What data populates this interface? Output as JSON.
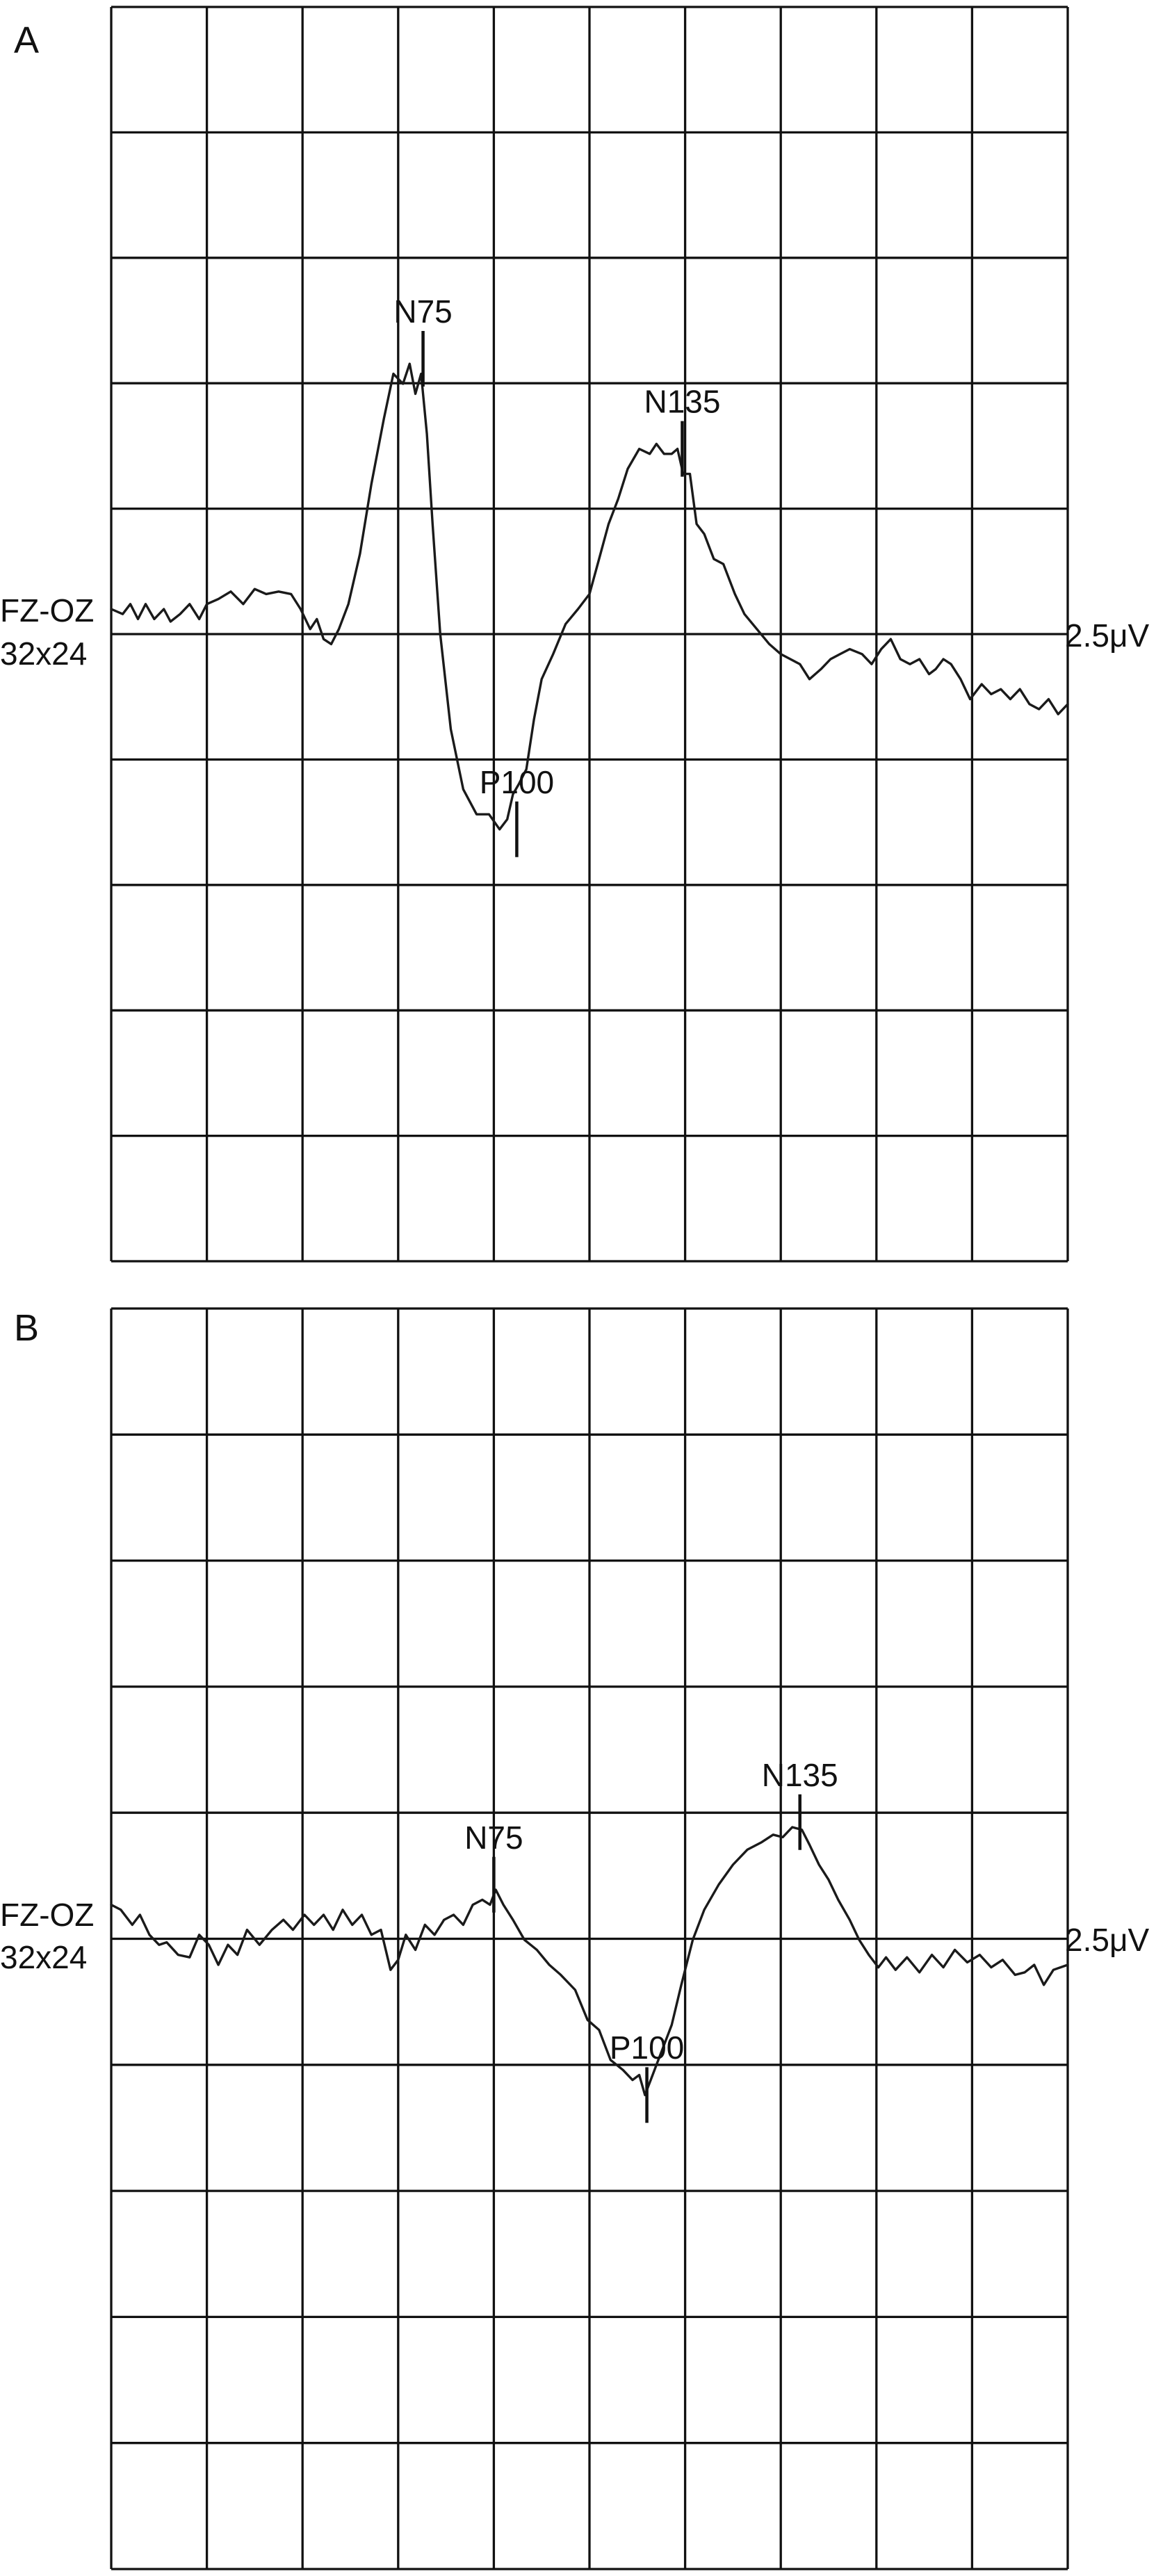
{
  "chart_data": [
    {
      "type": "line",
      "panel_label": "A",
      "channel_label": "FZ-OZ",
      "channel_sublabel": "32x24",
      "scale_label": "2.5μV",
      "grid": true,
      "grid_divisions": {
        "x": 10,
        "y": 10
      },
      "peaks": [
        {
          "name": "N75",
          "x": 3.26,
          "y": 5.5,
          "dir": -1
        },
        {
          "name": "P100",
          "x": 4.24,
          "y": -3.9,
          "dir": 1
        },
        {
          "name": "N135",
          "x": 5.97,
          "y": 3.7,
          "dir": -1
        }
      ],
      "series": [
        {
          "x": [
            0.0,
            0.12,
            0.2,
            0.28,
            0.36,
            0.45,
            0.55,
            0.62,
            0.72,
            0.82,
            0.92,
            1.0,
            1.12,
            1.25,
            1.38,
            1.5,
            1.62,
            1.75,
            1.88,
            1.98,
            2.08,
            2.15,
            2.22,
            2.3,
            2.38,
            2.48,
            2.6,
            2.72,
            2.85,
            2.95,
            3.05,
            3.12,
            3.18,
            3.24,
            3.3,
            3.36,
            3.44,
            3.55,
            3.68,
            3.82,
            3.95,
            4.06,
            4.14,
            4.2,
            4.26,
            4.34,
            4.42,
            4.5,
            4.62,
            4.75,
            4.88,
            5.0,
            5.1,
            5.2,
            5.3,
            5.4,
            5.52,
            5.63,
            5.7,
            5.78,
            5.86,
            5.92,
            5.98,
            6.05,
            6.12,
            6.2,
            6.3,
            6.4,
            6.52,
            6.62,
            6.75,
            6.88,
            7.0,
            7.1,
            7.2,
            7.3,
            7.42,
            7.52,
            7.62,
            7.72,
            7.85,
            7.95,
            8.05,
            8.15,
            8.25,
            8.35,
            8.45,
            8.55,
            8.62,
            8.7,
            8.78,
            8.88,
            8.98,
            9.1,
            9.2,
            9.3,
            9.4,
            9.5,
            9.6,
            9.7,
            9.8,
            9.9,
            10.0
          ],
          "y": [
            0.5,
            0.4,
            0.6,
            0.3,
            0.6,
            0.3,
            0.5,
            0.25,
            0.4,
            0.6,
            0.3,
            0.6,
            0.7,
            0.85,
            0.6,
            0.9,
            0.8,
            0.85,
            0.8,
            0.5,
            0.1,
            0.3,
            -0.1,
            -0.2,
            0.1,
            0.6,
            1.6,
            3.0,
            4.3,
            5.2,
            5.0,
            5.4,
            4.8,
            5.2,
            4.0,
            2.2,
            0.0,
            -1.9,
            -3.1,
            -3.6,
            -3.6,
            -3.9,
            -3.7,
            -3.2,
            -3.0,
            -2.7,
            -1.7,
            -0.9,
            -0.4,
            0.2,
            0.5,
            0.8,
            1.5,
            2.2,
            2.7,
            3.3,
            3.7,
            3.6,
            3.8,
            3.6,
            3.6,
            3.7,
            3.2,
            3.2,
            2.2,
            2.0,
            1.5,
            1.4,
            0.8,
            0.4,
            0.1,
            -0.2,
            -0.4,
            -0.5,
            -0.6,
            -0.9,
            -0.7,
            -0.5,
            -0.4,
            -0.3,
            -0.4,
            -0.6,
            -0.3,
            -0.1,
            -0.5,
            -0.6,
            -0.5,
            -0.8,
            -0.7,
            -0.5,
            -0.6,
            -0.9,
            -1.3,
            -1.0,
            -1.2,
            -1.1,
            -1.3,
            -1.1,
            -1.4,
            -1.5,
            -1.3,
            -1.6,
            -1.4
          ]
        }
      ]
    },
    {
      "type": "line",
      "panel_label": "B",
      "channel_label": "FZ-OZ",
      "channel_sublabel": "32x24",
      "scale_label": "2.5μV",
      "grid": true,
      "grid_divisions": {
        "x": 10,
        "y": 10
      },
      "peaks": [
        {
          "name": "N75",
          "x": 4.0,
          "y": 1.1,
          "dir": -1
        },
        {
          "name": "P100",
          "x": 5.6,
          "y": -3.1,
          "dir": 1
        },
        {
          "name": "N135",
          "x": 7.2,
          "y": 2.35,
          "dir": -1
        }
      ],
      "series": [
        {
          "x": [
            0.0,
            0.1,
            0.22,
            0.3,
            0.4,
            0.5,
            0.58,
            0.7,
            0.82,
            0.92,
            1.02,
            1.12,
            1.22,
            1.32,
            1.42,
            1.55,
            1.68,
            1.8,
            1.9,
            2.02,
            2.12,
            2.22,
            2.32,
            2.42,
            2.52,
            2.62,
            2.72,
            2.82,
            2.92,
            3.0,
            3.08,
            3.18,
            3.28,
            3.38,
            3.48,
            3.58,
            3.68,
            3.78,
            3.88,
            3.96,
            4.02,
            4.1,
            4.2,
            4.32,
            4.45,
            4.58,
            4.7,
            4.85,
            4.98,
            5.1,
            5.22,
            5.35,
            5.45,
            5.52,
            5.58,
            5.64,
            5.7,
            5.78,
            5.86,
            5.96,
            6.08,
            6.2,
            6.35,
            6.5,
            6.65,
            6.8,
            6.92,
            7.02,
            7.12,
            7.22,
            7.3,
            7.4,
            7.5,
            7.6,
            7.72,
            7.82,
            7.92,
            8.02,
            8.1,
            8.2,
            8.32,
            8.45,
            8.58,
            8.7,
            8.82,
            8.95,
            9.08,
            9.2,
            9.32,
            9.45,
            9.55,
            9.65,
            9.75,
            9.85,
            10.0
          ],
          "y": [
            0.7,
            0.6,
            0.3,
            0.5,
            0.1,
            -0.1,
            -0.05,
            -0.3,
            -0.35,
            0.1,
            -0.1,
            -0.5,
            -0.1,
            -0.3,
            0.2,
            -0.1,
            0.2,
            0.4,
            0.2,
            0.5,
            0.3,
            0.5,
            0.2,
            0.6,
            0.3,
            0.5,
            0.1,
            0.2,
            -0.6,
            -0.4,
            0.1,
            -0.2,
            0.3,
            0.1,
            0.4,
            0.5,
            0.3,
            0.7,
            0.8,
            0.7,
            1.0,
            0.7,
            0.4,
            0.0,
            -0.2,
            -0.5,
            -0.7,
            -1.0,
            -1.6,
            -1.8,
            -2.4,
            -2.6,
            -2.8,
            -2.7,
            -3.1,
            -2.8,
            -2.5,
            -2.1,
            -1.7,
            -0.9,
            0.0,
            0.6,
            1.1,
            1.5,
            1.8,
            1.95,
            2.1,
            2.05,
            2.25,
            2.2,
            1.9,
            1.5,
            1.2,
            0.8,
            0.4,
            0.0,
            -0.3,
            -0.55,
            -0.35,
            -0.6,
            -0.35,
            -0.65,
            -0.3,
            -0.55,
            -0.2,
            -0.45,
            -0.3,
            -0.55,
            -0.4,
            -0.7,
            -0.65,
            -0.5,
            -0.9,
            -0.6,
            -0.5
          ]
        }
      ]
    }
  ]
}
